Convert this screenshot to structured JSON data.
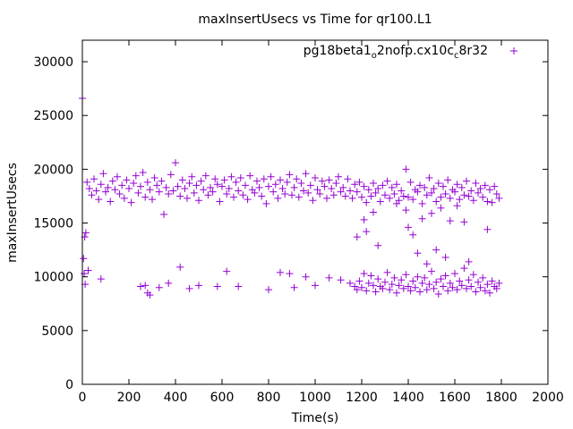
{
  "chart_data": {
    "type": "scatter",
    "title": "maxInsertUsecs vs Time for qr100.L1",
    "xlabel": "Time(s)",
    "ylabel": "maxInsertUsecs",
    "xlim": [
      0,
      2000
    ],
    "ylim": [
      0,
      32000
    ],
    "xticks": [
      0,
      200,
      400,
      600,
      800,
      1000,
      1200,
      1400,
      1600,
      1800,
      2000
    ],
    "yticks": [
      0,
      5000,
      10000,
      15000,
      20000,
      25000,
      30000
    ],
    "xtick_labels": [
      "0",
      "200",
      "400",
      "600",
      "800",
      "1000",
      "1200",
      "1400",
      "1600",
      "1800",
      "2000"
    ],
    "ytick_labels": [
      "0",
      "5000",
      "10000",
      "15000",
      "20000",
      "25000",
      "30000"
    ],
    "grid": false,
    "legend_position": "top-right",
    "series": [
      {
        "name_parts": [
          "pg18beta1",
          "o",
          "2nofp.cx10c",
          "c",
          "8r32"
        ],
        "color": "#9400d3",
        "marker": "plus",
        "points": [
          [
            0,
            26600
          ],
          [
            5,
            11700
          ],
          [
            8,
            10300
          ],
          [
            10,
            13700
          ],
          [
            12,
            9300
          ],
          [
            15,
            14100
          ],
          [
            20,
            18800
          ],
          [
            30,
            18200
          ],
          [
            40,
            17600
          ],
          [
            50,
            19100
          ],
          [
            60,
            18000
          ],
          [
            70,
            17200
          ],
          [
            80,
            18600
          ],
          [
            90,
            19600
          ],
          [
            100,
            17900
          ],
          [
            110,
            18300
          ],
          [
            120,
            17000
          ],
          [
            130,
            18900
          ],
          [
            140,
            18100
          ],
          [
            150,
            19300
          ],
          [
            160,
            17700
          ],
          [
            170,
            18500
          ],
          [
            180,
            17300
          ],
          [
            190,
            19000
          ],
          [
            200,
            18200
          ],
          [
            210,
            16900
          ],
          [
            220,
            18700
          ],
          [
            230,
            19400
          ],
          [
            240,
            17800
          ],
          [
            250,
            18400
          ],
          [
            260,
            19700
          ],
          [
            270,
            17400
          ],
          [
            280,
            18800
          ],
          [
            290,
            18100
          ],
          [
            300,
            17200
          ],
          [
            310,
            19200
          ],
          [
            320,
            18500
          ],
          [
            330,
            17900
          ],
          [
            340,
            18900
          ],
          [
            350,
            15800
          ],
          [
            360,
            18300
          ],
          [
            370,
            17700
          ],
          [
            380,
            19500
          ],
          [
            390,
            18000
          ],
          [
            400,
            20600
          ],
          [
            410,
            18400
          ],
          [
            420,
            17500
          ],
          [
            430,
            19000
          ],
          [
            440,
            18200
          ],
          [
            450,
            17300
          ],
          [
            460,
            18700
          ],
          [
            470,
            19300
          ],
          [
            480,
            17800
          ],
          [
            490,
            18500
          ],
          [
            500,
            17100
          ],
          [
            510,
            18900
          ],
          [
            520,
            18100
          ],
          [
            530,
            19400
          ],
          [
            540,
            17600
          ],
          [
            550,
            18300
          ],
          [
            560,
            17900
          ],
          [
            570,
            19100
          ],
          [
            580,
            18600
          ],
          [
            590,
            17000
          ],
          [
            600,
            18400
          ],
          [
            610,
            19000
          ],
          [
            620,
            17700
          ],
          [
            630,
            18200
          ],
          [
            640,
            19300
          ],
          [
            650,
            17400
          ],
          [
            660,
            18800
          ],
          [
            670,
            18000
          ],
          [
            680,
            19200
          ],
          [
            690,
            17600
          ],
          [
            700,
            18500
          ],
          [
            710,
            17200
          ],
          [
            720,
            19400
          ],
          [
            730,
            18100
          ],
          [
            740,
            17800
          ],
          [
            750,
            18900
          ],
          [
            760,
            18300
          ],
          [
            770,
            17500
          ],
          [
            780,
            19100
          ],
          [
            790,
            16800
          ],
          [
            800,
            18400
          ],
          [
            810,
            19300
          ],
          [
            820,
            17900
          ],
          [
            830,
            18600
          ],
          [
            840,
            17300
          ],
          [
            850,
            19000
          ],
          [
            860,
            18200
          ],
          [
            870,
            17700
          ],
          [
            880,
            18800
          ],
          [
            890,
            19500
          ],
          [
            900,
            17600
          ],
          [
            910,
            18300
          ],
          [
            920,
            19100
          ],
          [
            930,
            17400
          ],
          [
            940,
            18700
          ],
          [
            950,
            18000
          ],
          [
            960,
            19600
          ],
          [
            970,
            17800
          ],
          [
            980,
            18500
          ],
          [
            990,
            17100
          ],
          [
            1000,
            19200
          ],
          [
            1010,
            18100
          ],
          [
            1020,
            17700
          ],
          [
            1030,
            18900
          ],
          [
            1040,
            18400
          ],
          [
            1050,
            17300
          ],
          [
            1060,
            19000
          ],
          [
            1070,
            18200
          ],
          [
            1080,
            17600
          ],
          [
            1090,
            18700
          ],
          [
            1100,
            19300
          ],
          [
            1110,
            17900
          ],
          [
            1120,
            18300
          ],
          [
            1130,
            17500
          ],
          [
            1140,
            19100
          ],
          [
            1150,
            18000
          ],
          [
            1160,
            17300
          ],
          [
            1170,
            18600
          ],
          [
            1180,
            17900
          ],
          [
            1190,
            18800
          ],
          [
            1200,
            17400
          ],
          [
            1210,
            18400
          ],
          [
            1220,
            16900
          ],
          [
            1230,
            18100
          ],
          [
            1240,
            17500
          ],
          [
            1250,
            18700
          ],
          [
            1260,
            17800
          ],
          [
            1270,
            18200
          ],
          [
            1280,
            17000
          ],
          [
            1290,
            18500
          ],
          [
            1300,
            17600
          ],
          [
            1310,
            18900
          ],
          [
            1320,
            17300
          ],
          [
            1330,
            18300
          ],
          [
            1340,
            17700
          ],
          [
            1350,
            18600
          ],
          [
            1360,
            17100
          ],
          [
            1370,
            18000
          ],
          [
            1380,
            17500
          ],
          [
            1390,
            20000
          ],
          [
            1400,
            17400
          ],
          [
            1410,
            18800
          ],
          [
            1420,
            17200
          ],
          [
            1430,
            18100
          ],
          [
            1440,
            17900
          ],
          [
            1450,
            18500
          ],
          [
            1460,
            16800
          ],
          [
            1470,
            18300
          ],
          [
            1480,
            17600
          ],
          [
            1490,
            19200
          ],
          [
            1500,
            17800
          ],
          [
            1510,
            18200
          ],
          [
            1520,
            17000
          ],
          [
            1530,
            18700
          ],
          [
            1540,
            17400
          ],
          [
            1550,
            18400
          ],
          [
            1560,
            17700
          ],
          [
            1570,
            19000
          ],
          [
            1580,
            17300
          ],
          [
            1590,
            18100
          ],
          [
            1600,
            17900
          ],
          [
            1610,
            18600
          ],
          [
            1620,
            17200
          ],
          [
            1630,
            18300
          ],
          [
            1640,
            17600
          ],
          [
            1650,
            18900
          ],
          [
            1660,
            17500
          ],
          [
            1670,
            18000
          ],
          [
            1680,
            17100
          ],
          [
            1690,
            18700
          ],
          [
            1700,
            17800
          ],
          [
            1710,
            18200
          ],
          [
            1720,
            17400
          ],
          [
            1730,
            18500
          ],
          [
            1740,
            17000
          ],
          [
            1750,
            18100
          ],
          [
            1760,
            16900
          ],
          [
            1770,
            18400
          ],
          [
            1780,
            17700
          ],
          [
            1790,
            17300
          ],
          [
            25,
            10600
          ],
          [
            80,
            9800
          ],
          [
            250,
            9100
          ],
          [
            270,
            9200
          ],
          [
            280,
            8500
          ],
          [
            290,
            8300
          ],
          [
            330,
            9000
          ],
          [
            370,
            9400
          ],
          [
            420,
            10900
          ],
          [
            460,
            8900
          ],
          [
            500,
            9200
          ],
          [
            580,
            9100
          ],
          [
            620,
            10500
          ],
          [
            670,
            9100
          ],
          [
            800,
            8800
          ],
          [
            850,
            10400
          ],
          [
            890,
            10300
          ],
          [
            910,
            9000
          ],
          [
            960,
            10000
          ],
          [
            1000,
            9200
          ],
          [
            1060,
            9900
          ],
          [
            1110,
            9700
          ],
          [
            1150,
            9400
          ],
          [
            1170,
            9100
          ],
          [
            1180,
            8800
          ],
          [
            1190,
            9600
          ],
          [
            1200,
            9000
          ],
          [
            1210,
            10300
          ],
          [
            1220,
            8700
          ],
          [
            1230,
            9400
          ],
          [
            1240,
            10100
          ],
          [
            1250,
            9200
          ],
          [
            1260,
            8600
          ],
          [
            1270,
            9800
          ],
          [
            1280,
            9100
          ],
          [
            1290,
            8900
          ],
          [
            1300,
            9500
          ],
          [
            1310,
            10400
          ],
          [
            1320,
            8800
          ],
          [
            1330,
            9300
          ],
          [
            1340,
            9900
          ],
          [
            1350,
            8500
          ],
          [
            1360,
            9200
          ],
          [
            1370,
            9700
          ],
          [
            1380,
            8900
          ],
          [
            1390,
            10200
          ],
          [
            1400,
            9100
          ],
          [
            1410,
            8700
          ],
          [
            1420,
            9600
          ],
          [
            1430,
            9000
          ],
          [
            1440,
            10000
          ],
          [
            1450,
            8600
          ],
          [
            1460,
            9400
          ],
          [
            1470,
            9900
          ],
          [
            1480,
            8800
          ],
          [
            1490,
            9300
          ],
          [
            1500,
            10500
          ],
          [
            1510,
            8900
          ],
          [
            1520,
            9500
          ],
          [
            1530,
            8400
          ],
          [
            1540,
            9800
          ],
          [
            1550,
            9100
          ],
          [
            1560,
            10100
          ],
          [
            1570,
            8700
          ],
          [
            1580,
            9400
          ],
          [
            1590,
            9000
          ],
          [
            1600,
            10300
          ],
          [
            1610,
            8800
          ],
          [
            1620,
            9600
          ],
          [
            1630,
            9200
          ],
          [
            1640,
            10800
          ],
          [
            1650,
            8900
          ],
          [
            1660,
            9700
          ],
          [
            1670,
            9100
          ],
          [
            1680,
            10200
          ],
          [
            1690,
            8600
          ],
          [
            1700,
            9500
          ],
          [
            1710,
            9000
          ],
          [
            1720,
            9900
          ],
          [
            1730,
            8700
          ],
          [
            1740,
            9300
          ],
          [
            1750,
            8500
          ],
          [
            1760,
            9600
          ],
          [
            1770,
            9100
          ],
          [
            1780,
            8900
          ],
          [
            1790,
            9400
          ],
          [
            1180,
            13700
          ],
          [
            1210,
            15300
          ],
          [
            1220,
            14200
          ],
          [
            1250,
            16000
          ],
          [
            1270,
            12900
          ],
          [
            1350,
            16800
          ],
          [
            1390,
            16200
          ],
          [
            1400,
            14600
          ],
          [
            1420,
            13900
          ],
          [
            1440,
            12200
          ],
          [
            1460,
            15400
          ],
          [
            1480,
            11200
          ],
          [
            1500,
            15900
          ],
          [
            1520,
            12500
          ],
          [
            1540,
            16400
          ],
          [
            1560,
            11800
          ],
          [
            1580,
            15200
          ],
          [
            1610,
            16600
          ],
          [
            1640,
            15100
          ],
          [
            1660,
            11400
          ],
          [
            1740,
            14400
          ]
        ]
      }
    ]
  }
}
